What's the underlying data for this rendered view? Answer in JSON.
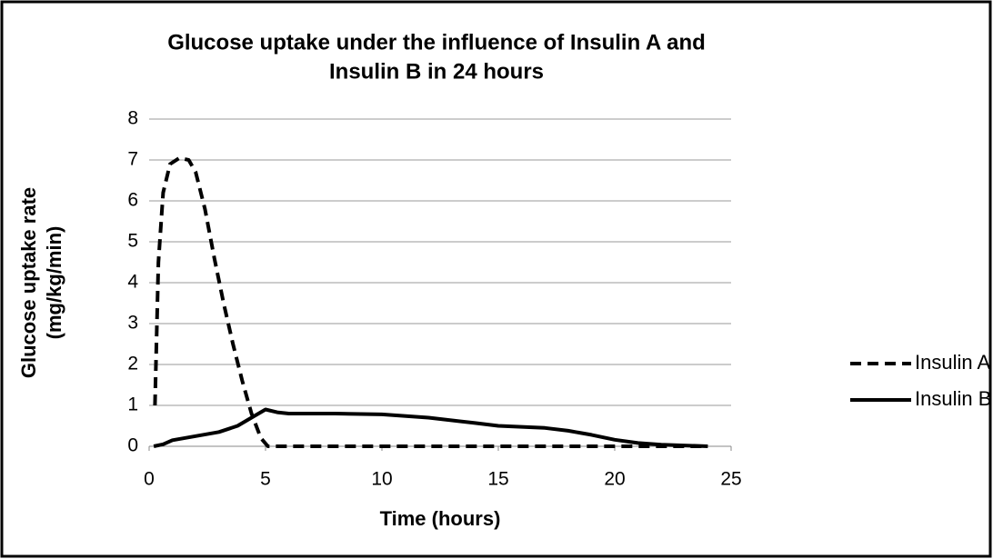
{
  "chart_data": {
    "type": "line",
    "title": [
      "Glucose uptake under the influence of Insulin A and",
      "Insulin B in 24 hours"
    ],
    "x_label": "Time (hours)",
    "y_label": [
      "Glucose uptake rate",
      "(mg/kg/min)"
    ],
    "xlim": [
      0,
      25
    ],
    "xticks": [
      0,
      5,
      10,
      15,
      20,
      25
    ],
    "ylim": [
      0,
      8
    ],
    "yticks": [
      0,
      1,
      2,
      3,
      4,
      5,
      6,
      7,
      8
    ],
    "grid": true,
    "legend": "right",
    "series": [
      {
        "name": "Insulin A",
        "color": "#000000",
        "line_style": "dashed",
        "x": [
          0.25,
          0.4,
          0.6,
          0.9,
          1.3,
          1.7,
          2.0,
          2.4,
          2.8,
          3.2,
          3.6,
          4.0,
          4.4,
          4.8,
          5.1,
          6,
          10,
          15,
          20,
          24
        ],
        "values": [
          1.0,
          4.5,
          6.2,
          6.9,
          7.05,
          7.0,
          6.7,
          5.8,
          4.6,
          3.5,
          2.5,
          1.6,
          0.8,
          0.2,
          0,
          0,
          0,
          0,
          0,
          0
        ]
      },
      {
        "name": "Insulin B",
        "color": "#000000",
        "line_style": "solid",
        "x": [
          0.2,
          0.6,
          1.0,
          2.0,
          3.0,
          3.8,
          4.4,
          5.0,
          5.5,
          6.0,
          8.0,
          10.0,
          12.0,
          14.0,
          15.0,
          17.0,
          18.0,
          19.0,
          20.0,
          21.0,
          22.0,
          24.0
        ],
        "values": [
          0,
          0.05,
          0.15,
          0.25,
          0.35,
          0.5,
          0.7,
          0.9,
          0.83,
          0.8,
          0.8,
          0.78,
          0.7,
          0.57,
          0.5,
          0.45,
          0.38,
          0.28,
          0.16,
          0.08,
          0.04,
          0
        ]
      }
    ]
  }
}
